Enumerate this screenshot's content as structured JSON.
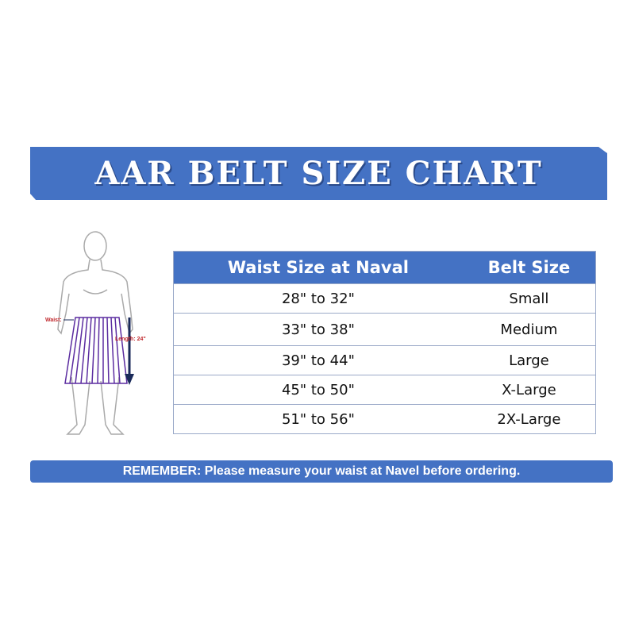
{
  "title": "AAR BELT SIZE CHART",
  "figure": {
    "waist_label": "Waist:",
    "length_label": "Length: 24\""
  },
  "table": {
    "headers": [
      "Waist Size at Naval",
      "Belt Size"
    ],
    "rows": [
      [
        "28\" to 32\"",
        "Small"
      ],
      [
        "33\" to 38\"",
        "Medium"
      ],
      [
        "39\" to 44\"",
        "Large"
      ],
      [
        "45\" to 50\"",
        "X-Large"
      ],
      [
        "51\" to 56\"",
        "2X-Large"
      ]
    ]
  },
  "footer": "REMEMBER: Please measure your waist at Navel before ordering.",
  "colors": {
    "accent": "#4472c4",
    "skirt": "#5b2ca0",
    "label": "#c0282d",
    "arrow": "#1a2a5a"
  }
}
